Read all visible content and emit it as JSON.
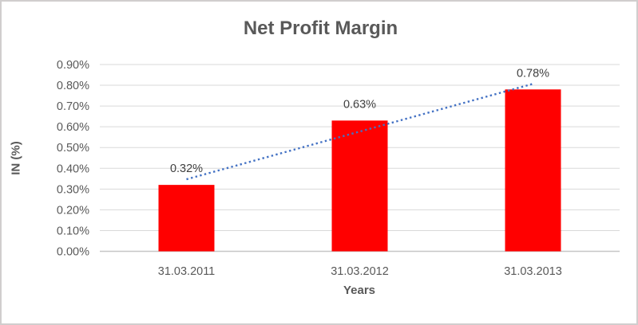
{
  "chart_data": {
    "type": "bar",
    "title": "Net Profit Margin",
    "xlabel": "Years",
    "ylabel": "IN (%)",
    "categories": [
      "31.03.2011",
      "31.03.2012",
      "31.03.2013"
    ],
    "series": [
      {
        "name": "Net Profit Margin",
        "values": [
          0.32,
          0.63,
          0.78
        ],
        "data_labels": [
          "0.32%",
          "0.63%",
          "0.78%"
        ],
        "color": "#ff0000"
      }
    ],
    "ylim": [
      0,
      0.9
    ],
    "ytick_step": 0.1,
    "ytick_labels": [
      "0.00%",
      "0.10%",
      "0.20%",
      "0.30%",
      "0.40%",
      "0.50%",
      "0.60%",
      "0.70%",
      "0.80%",
      "0.90%"
    ],
    "grid": true,
    "legend": "none",
    "trendline": {
      "type": "linear",
      "style": "dotted",
      "color": "#4472c4",
      "start_value": 0.347,
      "end_value": 0.807
    }
  },
  "colors": {
    "bar": "#ff0000",
    "trendline": "#4472c4",
    "gridline": "#d9d9d9",
    "axis_line": "#c6c6c6",
    "title_text": "#595959",
    "tick_text": "#595959",
    "data_label_text": "#404040",
    "border": "#d0cece",
    "background": "#ffffff"
  }
}
